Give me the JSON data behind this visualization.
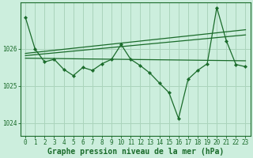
{
  "background_color": "#cceedd",
  "grid_color": "#aad4bb",
  "line_color": "#1a6b2a",
  "xlabel": "Graphe pression niveau de la mer (hPa)",
  "ylim": [
    1023.65,
    1027.25
  ],
  "xlim": [
    -0.5,
    23.5
  ],
  "yticks": [
    1024,
    1025,
    1026
  ],
  "xticks": [
    0,
    1,
    2,
    3,
    4,
    5,
    6,
    7,
    8,
    9,
    10,
    11,
    12,
    13,
    14,
    15,
    16,
    17,
    18,
    19,
    20,
    21,
    22,
    23
  ],
  "main_series_x": [
    0,
    1,
    2,
    3,
    4,
    5,
    6,
    7,
    8,
    9,
    10,
    11,
    12,
    13,
    14,
    15,
    16,
    17,
    18,
    19,
    20,
    21,
    22,
    23
  ],
  "main_series_y": [
    1026.85,
    1026.0,
    1025.65,
    1025.72,
    1025.45,
    1025.28,
    1025.5,
    1025.42,
    1025.6,
    1025.72,
    1026.12,
    1025.72,
    1025.55,
    1025.35,
    1025.08,
    1024.82,
    1024.12,
    1025.18,
    1025.42,
    1025.6,
    1027.12,
    1026.22,
    1025.58,
    1025.52
  ],
  "trend1_y": [
    1025.75,
    1025.68
  ],
  "trend2_y": [
    1025.82,
    1026.38
  ],
  "trend3_y": [
    1025.88,
    1026.52
  ],
  "ticker_fontsize": 5.5,
  "xlabel_fontsize": 7.0
}
